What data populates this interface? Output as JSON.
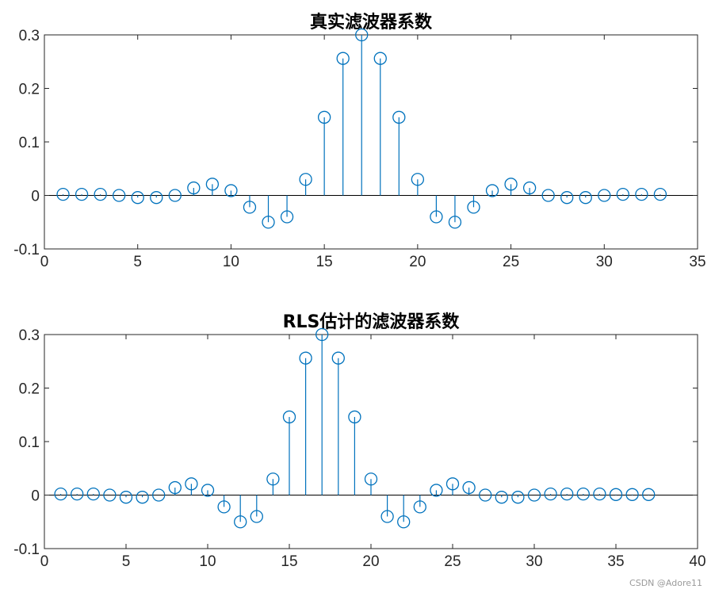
{
  "watermark": "CSDN @Adore11",
  "colors": {
    "series": "#0072BD",
    "axis": "#262626",
    "zero_line": "#000000",
    "background": "#ffffff"
  },
  "chart_data": [
    {
      "type": "stem",
      "title": "真实滤波器系数",
      "xlabel": "",
      "ylabel": "",
      "xlim": [
        0,
        35
      ],
      "ylim": [
        -0.1,
        0.3
      ],
      "xticks": [
        0,
        5,
        10,
        15,
        20,
        25,
        30,
        35
      ],
      "yticks": [
        -0.1,
        0,
        0.1,
        0.2,
        0.3
      ],
      "xticklabels": [
        "0",
        "5",
        "10",
        "15",
        "20",
        "25",
        "30",
        "35"
      ],
      "yticklabels": [
        "-0.1",
        "0",
        "0.1",
        "0.2",
        "0.3"
      ],
      "grid": false,
      "marker": "circle",
      "x": [
        1,
        2,
        3,
        4,
        5,
        6,
        7,
        8,
        9,
        10,
        11,
        12,
        13,
        14,
        15,
        16,
        17,
        18,
        19,
        20,
        21,
        22,
        23,
        24,
        25,
        26,
        27,
        28,
        29,
        30,
        31,
        32,
        33
      ],
      "values": [
        0.002,
        0.002,
        0.002,
        0.0,
        -0.004,
        -0.004,
        0.0,
        0.014,
        0.021,
        0.009,
        -0.022,
        -0.05,
        -0.04,
        0.03,
        0.146,
        0.256,
        0.3,
        0.256,
        0.146,
        0.03,
        -0.04,
        -0.05,
        -0.022,
        0.009,
        0.021,
        0.014,
        0.0,
        -0.004,
        -0.004,
        0.0,
        0.002,
        0.002,
        0.002
      ]
    },
    {
      "type": "stem",
      "title": "RLS估计的滤波器系数",
      "xlabel": "",
      "ylabel": "",
      "xlim": [
        0,
        40
      ],
      "ylim": [
        -0.1,
        0.3
      ],
      "xticks": [
        0,
        5,
        10,
        15,
        20,
        25,
        30,
        35,
        40
      ],
      "yticks": [
        -0.1,
        0,
        0.1,
        0.2,
        0.3
      ],
      "xticklabels": [
        "0",
        "5",
        "10",
        "15",
        "20",
        "25",
        "30",
        "35",
        "40"
      ],
      "yticklabels": [
        "-0.1",
        "0",
        "0.1",
        "0.2",
        "0.3"
      ],
      "grid": false,
      "marker": "circle",
      "x": [
        1,
        2,
        3,
        4,
        5,
        6,
        7,
        8,
        9,
        10,
        11,
        12,
        13,
        14,
        15,
        16,
        17,
        18,
        19,
        20,
        21,
        22,
        23,
        24,
        25,
        26,
        27,
        28,
        29,
        30,
        31,
        32,
        33,
        34,
        35,
        36,
        37
      ],
      "values": [
        0.002,
        0.002,
        0.002,
        0.0,
        -0.004,
        -0.004,
        0.0,
        0.014,
        0.021,
        0.009,
        -0.022,
        -0.05,
        -0.04,
        0.03,
        0.146,
        0.256,
        0.3,
        0.256,
        0.146,
        0.03,
        -0.04,
        -0.05,
        -0.022,
        0.009,
        0.021,
        0.014,
        0.0,
        -0.004,
        -0.004,
        0.0,
        0.002,
        0.002,
        0.002,
        0.002,
        0.001,
        0.001,
        0.001
      ]
    }
  ]
}
